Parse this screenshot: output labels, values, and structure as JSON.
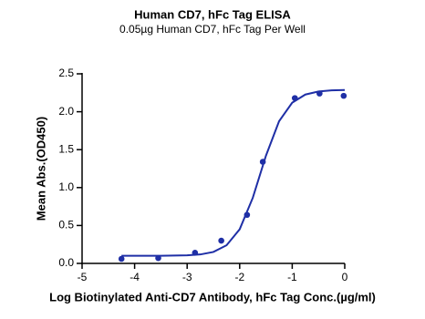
{
  "chart_data": {
    "type": "scatter",
    "title": "Human CD7, hFc Tag ELISA",
    "subtitle": "0.05µg Human CD7, hFc Tag Per Well",
    "x_label": "Log Biotinylated Anti-CD7 Antibody, hFc Tag Conc.(µg/ml)",
    "y_label": "Mean Abs.(OD450)",
    "xlim": [
      -5,
      0
    ],
    "ylim": [
      0,
      2.5
    ],
    "xticks": [
      -5,
      -4,
      -3,
      -2,
      -1,
      0
    ],
    "yticks": [
      {
        "value": 0,
        "label": "0.0"
      },
      0.5,
      {
        "value": 1,
        "label": "1.0"
      },
      1.5,
      {
        "value": 2,
        "label": "2.0"
      },
      2.5
    ],
    "color": "#1f2fa6",
    "series": [
      {
        "x": [
          -4.25,
          -3.55,
          -2.85,
          -2.35,
          -1.86,
          -1.56,
          -0.95,
          -0.48,
          -0.02
        ],
        "values": [
          0.06,
          0.07,
          0.14,
          0.3,
          0.64,
          1.34,
          2.18,
          2.24,
          2.21
        ]
      },
      {
        "x": [
          -4.25,
          -4.0,
          -3.5,
          -3.0,
          -2.75,
          -2.5,
          -2.25,
          -2.0,
          -1.75,
          -1.5,
          -1.25,
          -1.0,
          -0.75,
          -0.5,
          -0.25,
          0
        ],
        "values": [
          0.1,
          0.1,
          0.1,
          0.107,
          0.118,
          0.151,
          0.239,
          0.45,
          0.866,
          1.42,
          1.875,
          2.12,
          2.227,
          2.267,
          2.282,
          2.287
        ]
      }
    ]
  }
}
